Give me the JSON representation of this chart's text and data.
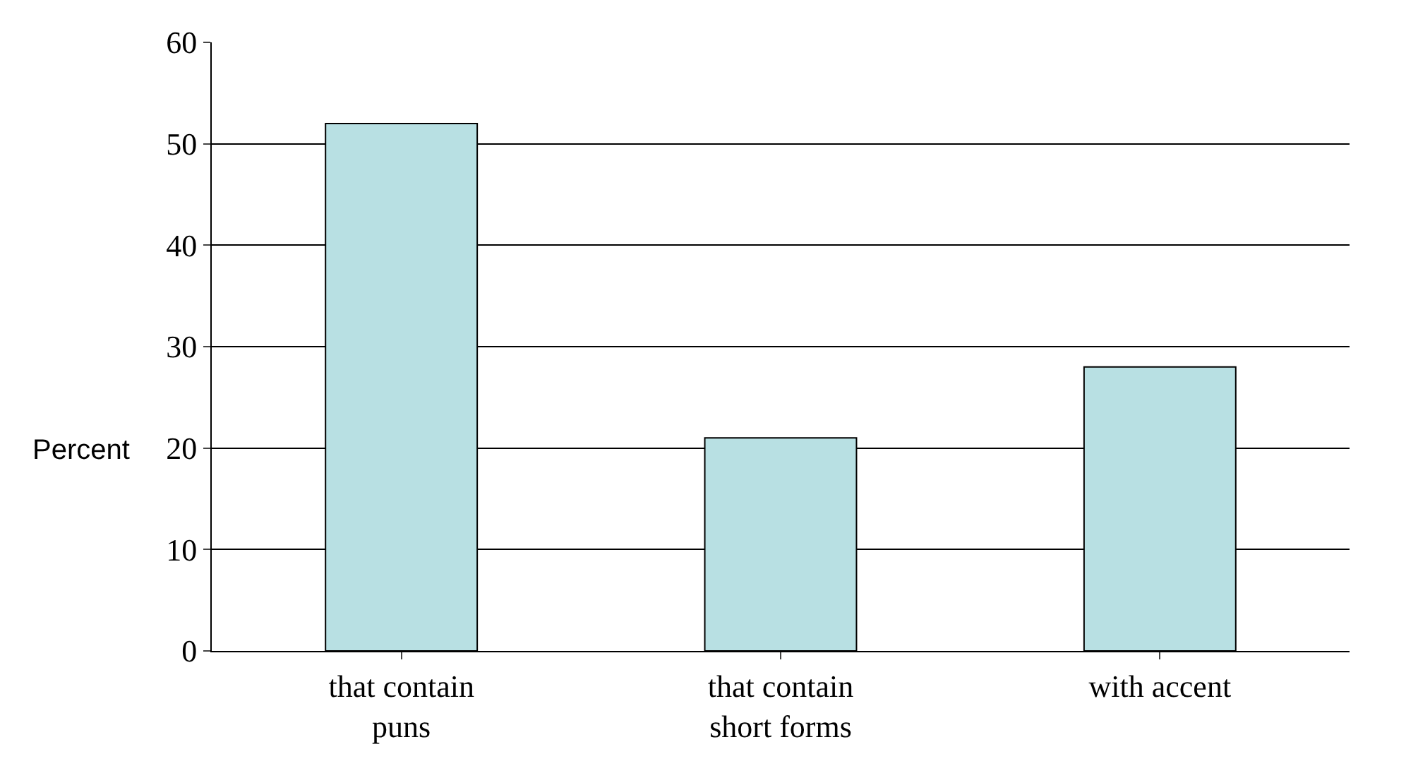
{
  "chart_data": {
    "type": "bar",
    "ylabel": "Percent",
    "categories": [
      "that contain puns",
      "that contain short forms",
      "with accent"
    ],
    "values": [
      52,
      21,
      28
    ],
    "color": "#b8e0e3",
    "ylim": [
      0,
      60
    ],
    "yticks": [
      0,
      10,
      20,
      30,
      40,
      50,
      60
    ],
    "grid": "y"
  }
}
